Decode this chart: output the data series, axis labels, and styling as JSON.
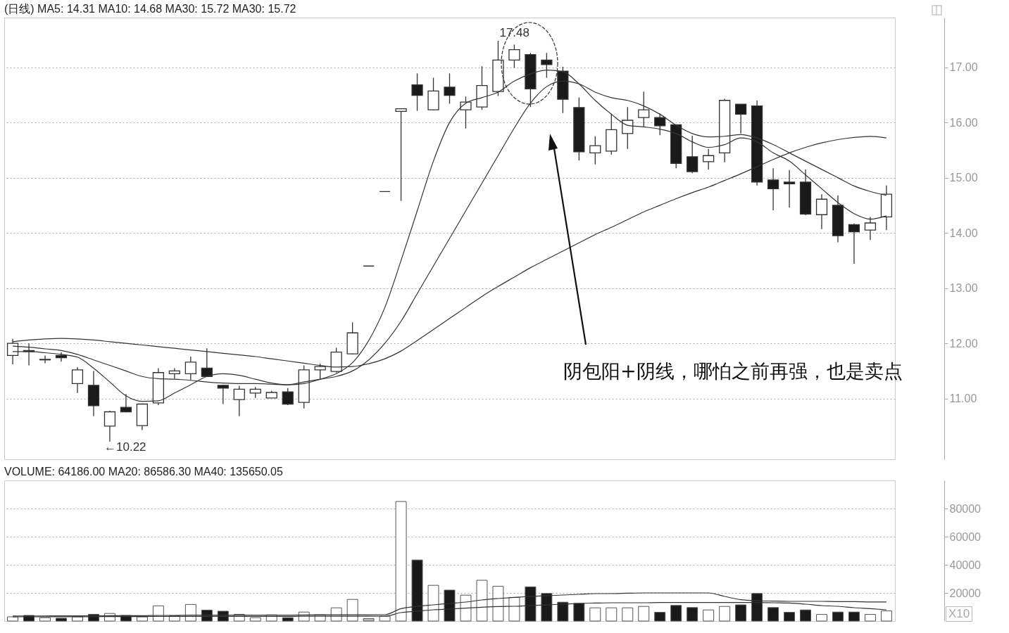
{
  "chart_data": [
    {
      "type": "candlestick",
      "title": "(日线) MA5: 14.31 MA10: 14.68 MA30: 15.72 MA30: 15.72",
      "categories": [
        null,
        null,
        null,
        null,
        null,
        null,
        null,
        null,
        null,
        null,
        null,
        null,
        null,
        null,
        null,
        null,
        null,
        null,
        null,
        null,
        null,
        null,
        null,
        null,
        null,
        null,
        null,
        null,
        null,
        null,
        null,
        null,
        null,
        null,
        null,
        null,
        null,
        null,
        null,
        null,
        null,
        null,
        null,
        null,
        null,
        null,
        null,
        null,
        null,
        null,
        null,
        null,
        null,
        null,
        null
      ],
      "ohlc": [
        [
          11.78,
          12.08,
          11.62,
          12.0
        ],
        [
          11.87,
          12.0,
          11.6,
          11.85
        ],
        [
          11.7,
          11.78,
          11.64,
          11.71
        ],
        [
          11.78,
          11.84,
          11.67,
          11.74
        ],
        [
          11.27,
          11.57,
          11.1,
          11.52
        ],
        [
          11.24,
          11.5,
          10.68,
          10.87
        ],
        [
          10.5,
          10.78,
          10.22,
          10.76
        ],
        [
          10.84,
          11.08,
          10.75,
          10.76
        ],
        [
          10.51,
          10.91,
          10.43,
          10.9
        ],
        [
          10.92,
          11.55,
          10.88,
          11.47
        ],
        [
          11.45,
          11.55,
          11.36,
          11.5
        ],
        [
          11.45,
          11.76,
          11.34,
          11.66
        ],
        [
          11.55,
          11.91,
          11.39,
          11.4
        ],
        [
          11.24,
          11.25,
          10.9,
          11.19
        ],
        [
          10.98,
          11.23,
          10.68,
          11.17
        ],
        [
          11.1,
          11.21,
          11.01,
          11.17
        ],
        [
          11.01,
          11.14,
          11.01,
          11.11
        ],
        [
          11.12,
          11.19,
          10.88,
          10.9
        ],
        [
          10.93,
          11.6,
          10.82,
          11.52
        ],
        [
          11.52,
          11.63,
          11.36,
          11.58
        ],
        [
          11.49,
          11.92,
          11.47,
          11.84
        ],
        [
          11.81,
          12.38,
          11.8,
          12.19
        ],
        [
          13.4,
          13.4,
          13.4,
          13.4
        ],
        [
          14.75,
          14.75,
          14.75,
          14.75
        ],
        [
          16.2,
          16.25,
          14.58,
          16.25
        ],
        [
          16.68,
          16.89,
          16.21,
          16.49
        ],
        [
          16.23,
          16.81,
          16.22,
          16.57
        ],
        [
          16.64,
          16.89,
          16.34,
          16.49
        ],
        [
          16.23,
          16.47,
          15.89,
          16.37
        ],
        [
          16.28,
          17.02,
          16.23,
          16.67
        ],
        [
          16.56,
          17.48,
          16.48,
          17.13
        ],
        [
          17.13,
          17.41,
          16.99,
          17.32
        ],
        [
          17.23,
          17.26,
          16.28,
          16.61
        ],
        [
          17.13,
          17.26,
          16.81,
          17.05
        ],
        [
          16.93,
          17.01,
          16.17,
          16.42
        ],
        [
          16.27,
          16.45,
          15.31,
          15.47
        ],
        [
          15.45,
          15.75,
          15.24,
          15.58
        ],
        [
          15.48,
          16.16,
          15.42,
          15.87
        ],
        [
          15.8,
          16.28,
          15.52,
          16.04
        ],
        [
          16.09,
          16.56,
          15.93,
          16.23
        ],
        [
          16.09,
          16.16,
          15.77,
          15.94
        ],
        [
          15.96,
          15.96,
          15.17,
          15.26
        ],
        [
          15.38,
          15.76,
          15.08,
          15.11
        ],
        [
          15.29,
          15.52,
          15.15,
          15.4
        ],
        [
          15.45,
          16.43,
          15.28,
          16.4
        ],
        [
          16.33,
          16.33,
          15.8,
          16.15
        ],
        [
          16.3,
          16.4,
          14.86,
          14.92
        ],
        [
          14.96,
          15.17,
          14.41,
          14.8
        ],
        [
          14.92,
          15.14,
          14.46,
          14.89
        ],
        [
          14.92,
          15.15,
          14.32,
          14.34
        ],
        [
          14.33,
          14.7,
          14.07,
          14.61
        ],
        [
          14.5,
          14.68,
          13.83,
          13.95
        ],
        [
          14.15,
          14.17,
          13.44,
          14.02
        ],
        [
          14.05,
          14.29,
          13.87,
          14.18
        ],
        [
          14.29,
          14.86,
          14.05,
          14.7
        ]
      ],
      "series": [
        {
          "type": "line",
          "color": "#333333",
          "values": [
            11.85,
            11.85,
            11.83,
            11.8,
            11.75,
            11.55,
            11.3,
            11.05,
            10.95,
            10.96,
            11.1,
            11.25,
            11.4,
            11.45,
            11.42,
            11.35,
            11.28,
            11.25,
            11.27,
            11.35,
            11.45,
            11.65,
            12.05,
            12.65,
            13.5,
            14.4,
            15.3,
            16.0,
            16.35,
            16.45,
            16.55,
            16.75,
            16.88,
            16.95,
            16.92,
            16.7,
            16.4,
            16.15,
            15.95,
            15.92,
            15.88,
            15.8,
            15.65,
            15.55,
            15.6,
            15.72,
            15.65,
            15.45,
            15.3,
            15.05,
            14.8,
            14.55,
            14.35,
            14.25,
            14.31
          ]
        },
        {
          "type": "line",
          "color": "#333333",
          "values": [
            11.95,
            11.93,
            11.9,
            11.87,
            11.8,
            11.7,
            11.6,
            11.5,
            11.4,
            11.36,
            11.35,
            11.33,
            11.3,
            11.28,
            11.27,
            11.27,
            11.26,
            11.25,
            11.3,
            11.35,
            11.4,
            11.5,
            11.7,
            12.0,
            12.4,
            12.9,
            13.4,
            13.9,
            14.4,
            14.9,
            15.4,
            15.9,
            16.35,
            16.65,
            16.75,
            16.7,
            16.55,
            16.45,
            16.4,
            16.3,
            16.15,
            15.95,
            15.8,
            15.74,
            15.75,
            15.78,
            15.72,
            15.6,
            15.45,
            15.3,
            15.15,
            15.0,
            14.85,
            14.75,
            14.68
          ]
        },
        {
          "type": "line",
          "color": "#333333",
          "values": [
            12.03,
            12.06,
            12.08,
            12.09,
            12.08,
            12.06,
            12.03,
            12.0,
            11.97,
            11.94,
            11.91,
            11.88,
            11.85,
            11.82,
            11.79,
            11.76,
            11.72,
            11.68,
            11.64,
            11.6,
            11.57,
            11.58,
            11.63,
            11.72,
            11.86,
            12.05,
            12.25,
            12.45,
            12.65,
            12.85,
            13.03,
            13.2,
            13.37,
            13.52,
            13.67,
            13.82,
            13.97,
            14.1,
            14.24,
            14.38,
            14.5,
            14.62,
            14.73,
            14.83,
            14.95,
            15.07,
            15.2,
            15.33,
            15.45,
            15.55,
            15.63,
            15.69,
            15.73,
            15.75,
            15.72
          ]
        }
      ],
      "ylim": [
        9.9,
        17.9
      ],
      "yticks": [
        {
          "value": 11,
          "label": "11.00"
        },
        {
          "value": 12,
          "label": "12.00"
        },
        {
          "value": 13,
          "label": "13.00"
        },
        {
          "value": 14,
          "label": "14.00"
        },
        {
          "value": 15,
          "label": "15.00"
        },
        {
          "value": 16,
          "label": "16.00"
        },
        {
          "value": 17,
          "label": "17.00"
        }
      ],
      "grid": "y",
      "tick_labels": "y",
      "annotations": [
        {
          "text": "17.48",
          "y": 17.48
        },
        "←10.22",
        "阴包阳+阴线，哪怕之前再强，也是卖点"
      ]
    },
    {
      "type": "bar",
      "title": "VOLUME: 64186.00 MA20: 86586.30 MA40: 135650.05",
      "categories": [
        null,
        null,
        null,
        null,
        null,
        null,
        null,
        null,
        null,
        null,
        null,
        null,
        null,
        null,
        null,
        null,
        null,
        null,
        null,
        null,
        null,
        null,
        null,
        null,
        null,
        null,
        null,
        null,
        null,
        null,
        null,
        null,
        null,
        null,
        null,
        null,
        null,
        null,
        null,
        null,
        null,
        null,
        null,
        null,
        null,
        null,
        null,
        null,
        null,
        null,
        null,
        null,
        null,
        null,
        null
      ],
      "series": [
        {
          "type": "bar",
          "values": [
            3000,
            4000,
            2400,
            2000,
            3000,
            4800,
            5400,
            4000,
            3000,
            10800,
            3800,
            11800,
            7800,
            7000,
            4800,
            2400,
            4400,
            2400,
            6400,
            4400,
            9400,
            15400,
            1800,
            3400,
            85000,
            43400,
            25400,
            22000,
            18400,
            29000,
            24700,
            16800,
            24300,
            19600,
            13400,
            12600,
            9400,
            9400,
            9400,
            10400,
            6200,
            11100,
            9600,
            7900,
            10400,
            11500,
            19600,
            9600,
            6200,
            7900,
            4700,
            6400,
            6400,
            4700,
            7200
          ],
          "colors": [
            "#ffffff",
            "#1a1a1a",
            "#ffffff",
            "#1a1a1a",
            "#ffffff",
            "#1a1a1a",
            "#ffffff",
            "#1a1a1a",
            "#ffffff",
            "#ffffff",
            "#ffffff",
            "#ffffff",
            "#1a1a1a",
            "#1a1a1a",
            "#ffffff",
            "#ffffff",
            "#ffffff",
            "#1a1a1a",
            "#ffffff",
            "#ffffff",
            "#ffffff",
            "#ffffff",
            "#bbbbbb",
            "#ffffff",
            "#ffffff",
            "#1a1a1a",
            "#ffffff",
            "#1a1a1a",
            "#ffffff",
            "#ffffff",
            "#ffffff",
            "#ffffff",
            "#1a1a1a",
            "#1a1a1a",
            "#1a1a1a",
            "#1a1a1a",
            "#ffffff",
            "#ffffff",
            "#ffffff",
            "#ffffff",
            "#1a1a1a",
            "#1a1a1a",
            "#1a1a1a",
            "#ffffff",
            "#ffffff",
            "#1a1a1a",
            "#1a1a1a",
            "#1a1a1a",
            "#1a1a1a",
            "#1a1a1a",
            "#ffffff",
            "#1a1a1a",
            "#1a1a1a",
            "#ffffff",
            "#ffffff"
          ]
        },
        {
          "type": "line",
          "color": "#333333",
          "values": [
            3600,
            3600,
            3600,
            3700,
            3700,
            3700,
            3800,
            3800,
            3800,
            4000,
            4000,
            4200,
            4200,
            4200,
            4200,
            4200,
            4200,
            4200,
            4300,
            4400,
            4400,
            4400,
            4400,
            4500,
            8800,
            10500,
            11500,
            12500,
            13500,
            15000,
            16000,
            16800,
            17500,
            18000,
            18500,
            19000,
            19500,
            19500,
            19800,
            20000,
            20000,
            20000,
            20000,
            20000,
            17500,
            15200,
            14500,
            14200,
            14000,
            14000,
            14000,
            13800,
            13800,
            13600,
            13600
          ]
        },
        {
          "type": "line",
          "color": "#333333",
          "values": [
            3000,
            3000,
            3000,
            3100,
            3100,
            3100,
            3200,
            3200,
            3200,
            3300,
            3300,
            3300,
            3300,
            3300,
            3300,
            3300,
            3300,
            3300,
            3400,
            3400,
            3400,
            3400,
            3400,
            3500,
            6000,
            7000,
            8000,
            8500,
            9200,
            9800,
            10300,
            10500,
            11000,
            11500,
            12000,
            12500,
            12800,
            13000,
            13000,
            13000,
            13200,
            13200,
            13200,
            13200,
            13200,
            13200,
            13200,
            13000,
            12800,
            12000,
            11000,
            10500,
            9500,
            8800,
            8000
          ]
        }
      ],
      "ylim": [
        0,
        100000
      ],
      "yticks": [
        20000,
        40000,
        60000,
        80000
      ],
      "grid": "y",
      "tick_labels": "y",
      "annotations": [
        "X10"
      ]
    }
  ]
}
